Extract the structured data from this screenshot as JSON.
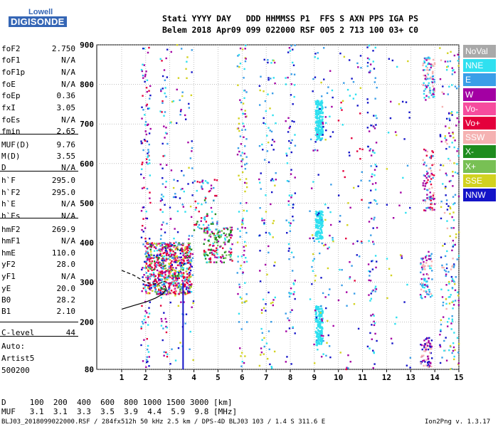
{
  "logo": {
    "top": "Lowell",
    "bottom": "DIGISONDE"
  },
  "header": {
    "line1": "Stati YYYY DAY   DDD HHMMSS P1  FFS S AXN PPS IGA PS",
    "line2": "Belem 2018 Apr09 099 022000 RSF 005 2 713 100 03+ C0"
  },
  "params": [
    {
      "name": "foF2",
      "value": "2.750"
    },
    {
      "name": "foF1",
      "value": "N/A"
    },
    {
      "name": "foF1p",
      "value": "N/A"
    },
    {
      "name": "foE",
      "value": "N/A"
    },
    {
      "name": "foEp",
      "value": "0.36"
    },
    {
      "name": "fxI",
      "value": "3.05"
    },
    {
      "name": "foEs",
      "value": "N/A"
    },
    {
      "name": "fmin",
      "value": "2.65"
    },
    {
      "name": "MUF(D)",
      "value": "9.76"
    },
    {
      "name": "M(D)",
      "value": "3.55"
    },
    {
      "name": "D",
      "value": "N/A"
    },
    {
      "name": "h`F",
      "value": "295.0"
    },
    {
      "name": "h`F2",
      "value": "295.0"
    },
    {
      "name": "h`E",
      "value": "N/A"
    },
    {
      "name": "h`Es",
      "value": "N/A"
    },
    {
      "name": "hmF2",
      "value": "269.9"
    },
    {
      "name": "hmF1",
      "value": "N/A"
    },
    {
      "name": "hmE",
      "value": "110.0"
    },
    {
      "name": "yF2",
      "value": "28.0"
    },
    {
      "name": "yF1",
      "value": "N/A"
    },
    {
      "name": "yE",
      "value": "20.0"
    },
    {
      "name": "B0",
      "value": "28.2"
    },
    {
      "name": "B1",
      "value": "2.10"
    },
    {
      "name": "C-level",
      "value": "44"
    }
  ],
  "auto": {
    "label": "Auto:",
    "artist": "Artist5",
    "version": "500200"
  },
  "footer": {
    "d_line": "D     100  200  400  600  800 1000 1500 3000 [km]",
    "muf_line": "MUF   3.1  3.1  3.3  3.5  3.9  4.4  5.9  9.8 [MHz]",
    "file_line": "BLJ03_2018099022000.RSF / 284fx512h 50 kHz 2.5 km / DPS-4D BLJ03 103 / 1.4 S 311.6 E",
    "version": "Ion2Png v. 1.3.17"
  },
  "legend": [
    {
      "label": "NoVal",
      "color": "#a9a9a9"
    },
    {
      "label": "NNE",
      "color": "#2fe0f0"
    },
    {
      "label": "E",
      "color": "#3a9ee8"
    },
    {
      "label": "W",
      "color": "#a300a3"
    },
    {
      "label": "Vo-",
      "color": "#f64c9e"
    },
    {
      "label": "Vo+",
      "color": "#e4003c"
    },
    {
      "label": "SSW",
      "color": "#f5b2b2"
    },
    {
      "label": "X-",
      "color": "#1e8c1e"
    },
    {
      "label": "X+",
      "color": "#78c054"
    },
    {
      "label": "SSE",
      "color": "#d2d220"
    },
    {
      "label": "NNW",
      "color": "#1414c8"
    }
  ],
  "chart_data": {
    "type": "scatter",
    "xlim": [
      1,
      15
    ],
    "ylim": [
      80,
      900
    ],
    "xticks": [
      "1",
      "2",
      "3",
      "4",
      "5",
      "6",
      "7",
      "8",
      "9",
      "10",
      "11",
      "12",
      "13",
      "14",
      "15"
    ],
    "yticks": [
      "80",
      "200",
      "300",
      "400",
      "500",
      "600",
      "700",
      "800",
      "900"
    ],
    "grid": true,
    "legend_position": "right",
    "traces": [
      {
        "name": "nnw-vertical-line",
        "color": "#1414c8",
        "points": [
          [
            3.55,
            80
          ],
          [
            3.55,
            300
          ]
        ]
      },
      {
        "name": "profile-dashed",
        "color": "#000000",
        "dashed": true,
        "points": [
          [
            1.0,
            330
          ],
          [
            1.5,
            318
          ],
          [
            2.0,
            300
          ],
          [
            2.3,
            296
          ],
          [
            2.6,
            298
          ],
          [
            2.8,
            303
          ]
        ]
      },
      {
        "name": "profile-solid",
        "color": "#000000",
        "dashed": false,
        "points": [
          [
            1.0,
            232
          ],
          [
            1.6,
            243
          ],
          [
            2.0,
            250
          ],
          [
            2.4,
            260
          ],
          [
            2.7,
            270
          ],
          [
            2.85,
            283
          ],
          [
            2.8,
            292
          ]
        ]
      }
    ],
    "clusters": [
      {
        "x": [
          2.0,
          3.9
        ],
        "y": [
          270,
          400
        ],
        "colors": [
          "#e4003c",
          "#e4003c",
          "#e4003c",
          "#f64c9e",
          "#1e8c1e",
          "#78c054",
          "#3a9ee8",
          "#2fe0f0",
          "#1414c8",
          "#a300a3",
          "#d2d220"
        ],
        "n": 700
      },
      {
        "x": [
          4.4,
          5.6
        ],
        "y": [
          350,
          440
        ],
        "colors": [
          "#e4003c",
          "#1e8c1e",
          "#78c054",
          "#2fe0f0",
          "#a300a3"
        ],
        "n": 160
      },
      {
        "x": [
          4.0,
          5.0
        ],
        "y": [
          430,
          560
        ],
        "colors": [
          "#a300a3",
          "#e4003c",
          "#1e8c1e",
          "#2fe0f0",
          "#3a9ee8"
        ],
        "n": 70
      },
      {
        "x": [
          1.8,
          2.2
        ],
        "y": [
          80,
          900
        ],
        "colors": [
          "#1414c8",
          "#a300a3",
          "#3a9ee8",
          "#e4003c",
          "#2fe0f0"
        ],
        "n": 140
      },
      {
        "x": [
          2.6,
          2.9
        ],
        "y": [
          80,
          900
        ],
        "colors": [
          "#1414c8",
          "#a300a3",
          "#3a9ee8",
          "#2fe0f0",
          "#e4003c"
        ],
        "n": 90
      },
      {
        "x": [
          3.0,
          4.0
        ],
        "y": [
          80,
          900
        ],
        "colors": [
          "#1414c8",
          "#3a9ee8",
          "#a300a3",
          "#2fe0f0",
          "#d2d220"
        ],
        "n": 110
      },
      {
        "x": [
          5.8,
          6.2
        ],
        "y": [
          80,
          900
        ],
        "colors": [
          "#d2d220",
          "#a300a3",
          "#3a9ee8",
          "#2fe0f0"
        ],
        "n": 120
      },
      {
        "x": [
          6.7,
          7.4
        ],
        "y": [
          80,
          880
        ],
        "colors": [
          "#a300a3",
          "#2fe0f0",
          "#1414c8",
          "#3a9ee8",
          "#d2d220"
        ],
        "n": 110
      },
      {
        "x": [
          7.8,
          8.2
        ],
        "y": [
          80,
          900
        ],
        "colors": [
          "#1414c8",
          "#3a9ee8",
          "#a300a3",
          "#2fe0f0"
        ],
        "n": 90
      },
      {
        "x": [
          9.05,
          9.35
        ],
        "y": [
          660,
          760
        ],
        "colors": [
          "#2fe0f0"
        ],
        "n": 200
      },
      {
        "x": [
          9.05,
          9.35
        ],
        "y": [
          410,
          480
        ],
        "colors": [
          "#2fe0f0"
        ],
        "n": 140
      },
      {
        "x": [
          9.05,
          9.35
        ],
        "y": [
          140,
          240
        ],
        "colors": [
          "#2fe0f0"
        ],
        "n": 160
      },
      {
        "x": [
          8.8,
          9.8
        ],
        "y": [
          80,
          900
        ],
        "colors": [
          "#2fe0f0",
          "#3a9ee8",
          "#1414c8",
          "#a300a3",
          "#d2d220"
        ],
        "n": 110
      },
      {
        "x": [
          10.0,
          11.0
        ],
        "y": [
          80,
          900
        ],
        "colors": [
          "#a300a3",
          "#1414c8",
          "#3a9ee8",
          "#e4003c",
          "#2fe0f0",
          "#d2d220"
        ],
        "n": 70
      },
      {
        "x": [
          11.2,
          11.6
        ],
        "y": [
          80,
          900
        ],
        "colors": [
          "#1414c8",
          "#a300a3",
          "#2fe0f0",
          "#3a9ee8"
        ],
        "n": 110
      },
      {
        "x": [
          12.0,
          13.0
        ],
        "y": [
          80,
          900
        ],
        "colors": [
          "#a300a3",
          "#1414c8",
          "#2fe0f0",
          "#3a9ee8",
          "#d2d220"
        ],
        "n": 40
      },
      {
        "x": [
          13.5,
          14.0
        ],
        "y": [
          760,
          870
        ],
        "colors": [
          "#f5b2b2",
          "#3a9ee8",
          "#a300a3",
          "#2fe0f0"
        ],
        "n": 90
      },
      {
        "x": [
          13.5,
          14.0
        ],
        "y": [
          480,
          640
        ],
        "colors": [
          "#f5b2b2",
          "#a300a3",
          "#e4003c",
          "#3a9ee8"
        ],
        "n": 90
      },
      {
        "x": [
          13.4,
          13.9
        ],
        "y": [
          260,
          380
        ],
        "colors": [
          "#f5b2b2",
          "#a300a3",
          "#3a9ee8",
          "#2fe0f0"
        ],
        "n": 80
      },
      {
        "x": [
          13.4,
          13.9
        ],
        "y": [
          85,
          160
        ],
        "colors": [
          "#f5b2b2",
          "#a300a3",
          "#1414c8"
        ],
        "n": 70
      },
      {
        "x": [
          14.2,
          14.8
        ],
        "y": [
          80,
          900
        ],
        "colors": [
          "#a300a3",
          "#f5b2b2",
          "#3a9ee8",
          "#2fe0f0",
          "#d2d220",
          "#1414c8"
        ],
        "n": 140
      },
      {
        "x": [
          14.6,
          15.0
        ],
        "y": [
          80,
          900
        ],
        "colors": [
          "#d2d220",
          "#a300a3",
          "#3a9ee8",
          "#2fe0f0"
        ],
        "n": 80
      }
    ]
  }
}
